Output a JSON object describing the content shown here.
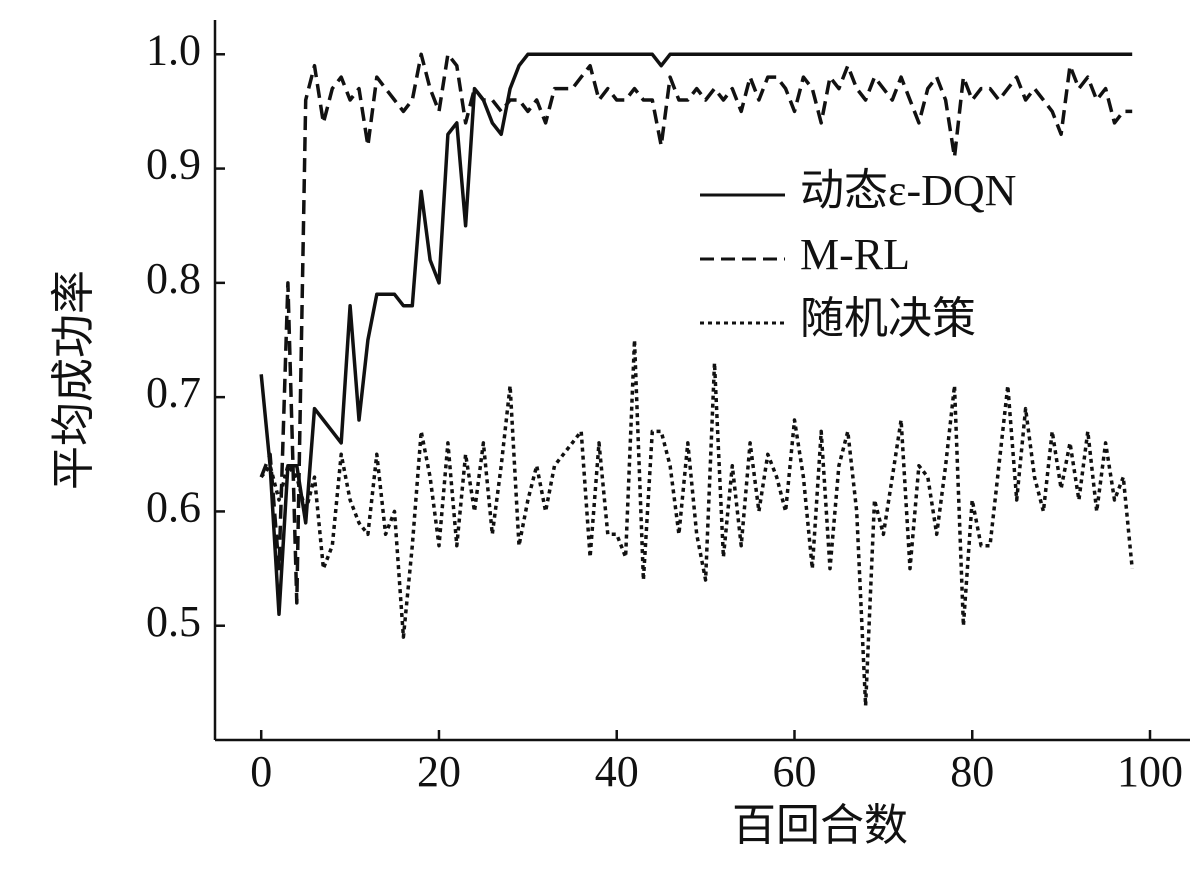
{
  "chart_data": {
    "type": "line",
    "xlabel": "百回合数",
    "ylabel": "平均成功率",
    "x": [
      0,
      1,
      2,
      3,
      4,
      5,
      6,
      7,
      8,
      9,
      10,
      11,
      12,
      13,
      14,
      15,
      16,
      17,
      18,
      19,
      20,
      21,
      22,
      23,
      24,
      25,
      26,
      27,
      28,
      29,
      30,
      31,
      32,
      33,
      34,
      35,
      36,
      37,
      38,
      39,
      40,
      41,
      42,
      43,
      44,
      45,
      46,
      47,
      48,
      49,
      50,
      51,
      52,
      53,
      54,
      55,
      56,
      57,
      58,
      59,
      60,
      61,
      62,
      63,
      64,
      65,
      66,
      67,
      68,
      69,
      70,
      71,
      72,
      73,
      74,
      75,
      76,
      77,
      78,
      79,
      80,
      81,
      82,
      83,
      84,
      85,
      86,
      87,
      88,
      89,
      90,
      91,
      92,
      93,
      94,
      95,
      96,
      97,
      98
    ],
    "series": [
      {
        "name": "动态ε-DQN",
        "color": "#111111",
        "linestyle": "solid",
        "values": [
          0.72,
          0.64,
          0.51,
          0.64,
          0.64,
          0.59,
          0.69,
          0.68,
          0.67,
          0.66,
          0.78,
          0.68,
          0.75,
          0.79,
          0.79,
          0.79,
          0.78,
          0.78,
          0.88,
          0.82,
          0.8,
          0.93,
          0.94,
          0.85,
          0.97,
          0.96,
          0.94,
          0.93,
          0.97,
          0.99,
          1,
          1,
          1,
          1,
          1,
          1,
          1,
          1,
          1,
          1,
          1,
          1,
          1,
          1,
          1,
          0.99,
          1,
          1,
          1,
          1,
          1,
          1,
          1,
          1,
          1,
          1,
          1,
          1,
          1,
          1,
          1,
          1,
          1,
          1,
          1,
          1,
          1,
          1,
          1,
          1,
          1,
          1,
          1,
          1,
          1,
          1,
          1,
          1,
          1,
          1,
          1,
          1,
          1,
          1,
          1,
          1,
          1,
          1,
          1,
          1,
          1,
          1,
          1,
          1,
          1,
          1,
          1,
          1,
          1
        ]
      },
      {
        "name": "M-RL",
        "color": "#111111",
        "linestyle": "dashed",
        "values": [
          0.63,
          0.65,
          0.55,
          0.8,
          0.52,
          0.96,
          0.99,
          0.94,
          0.97,
          0.98,
          0.96,
          0.97,
          0.92,
          0.98,
          0.97,
          0.96,
          0.95,
          0.96,
          1,
          0.97,
          0.95,
          1,
          0.99,
          0.94,
          0.97,
          0.96,
          0.96,
          0.95,
          0.96,
          0.96,
          0.95,
          0.96,
          0.94,
          0.97,
          0.97,
          0.97,
          0.98,
          0.99,
          0.96,
          0.97,
          0.96,
          0.96,
          0.97,
          0.96,
          0.96,
          0.92,
          0.98,
          0.96,
          0.96,
          0.97,
          0.96,
          0.97,
          0.96,
          0.97,
          0.95,
          0.98,
          0.96,
          0.98,
          0.98,
          0.97,
          0.95,
          0.98,
          0.97,
          0.94,
          0.98,
          0.97,
          0.99,
          0.97,
          0.96,
          0.98,
          0.97,
          0.96,
          0.98,
          0.96,
          0.94,
          0.97,
          0.98,
          0.96,
          0.91,
          0.98,
          0.96,
          0.97,
          0.97,
          0.96,
          0.97,
          0.98,
          0.96,
          0.97,
          0.96,
          0.95,
          0.93,
          0.99,
          0.97,
          0.98,
          0.96,
          0.97,
          0.94,
          0.95,
          0.95
        ]
      },
      {
        "name": "随机决策",
        "color": "#111111",
        "linestyle": "dotted",
        "values": [
          0.63,
          0.64,
          0.61,
          0.64,
          0.63,
          0.6,
          0.63,
          0.55,
          0.57,
          0.65,
          0.61,
          0.59,
          0.58,
          0.65,
          0.58,
          0.6,
          0.49,
          0.57,
          0.67,
          0.63,
          0.57,
          0.66,
          0.57,
          0.65,
          0.6,
          0.66,
          0.58,
          0.64,
          0.71,
          0.57,
          0.61,
          0.64,
          0.6,
          0.64,
          0.65,
          0.66,
          0.67,
          0.56,
          0.66,
          0.58,
          0.58,
          0.56,
          0.75,
          0.54,
          0.67,
          0.67,
          0.64,
          0.58,
          0.66,
          0.58,
          0.54,
          0.73,
          0.56,
          0.64,
          0.57,
          0.66,
          0.6,
          0.65,
          0.63,
          0.6,
          0.68,
          0.63,
          0.55,
          0.67,
          0.55,
          0.64,
          0.67,
          0.6,
          0.43,
          0.61,
          0.58,
          0.63,
          0.68,
          0.55,
          0.64,
          0.63,
          0.58,
          0.64,
          0.71,
          0.5,
          0.61,
          0.57,
          0.57,
          0.64,
          0.71,
          0.61,
          0.69,
          0.63,
          0.6,
          0.67,
          0.62,
          0.66,
          0.61,
          0.67,
          0.6,
          0.66,
          0.61,
          0.63,
          0.55
        ]
      }
    ],
    "xlim": [
      -5.2,
      104.5
    ],
    "ylim": [
      0.4,
      1.03
    ],
    "xticks": [
      0,
      20,
      40,
      60,
      80,
      100
    ],
    "yticks": [
      0.5,
      0.6,
      0.7,
      0.8,
      0.9,
      {
        "value": 1,
        "label": "1.0"
      }
    ],
    "grid": false,
    "legend": "center right"
  }
}
